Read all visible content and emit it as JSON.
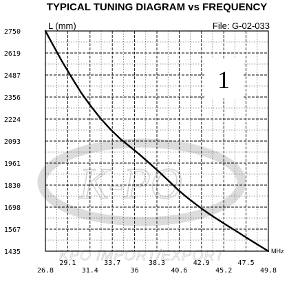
{
  "chart_data": {
    "type": "line",
    "title": "TYPICAL TUNING DIAGRAM vs FREQUENCY",
    "ylabel": "L (mm)",
    "xlabel": "MHz",
    "file_label": "File:  G-02-033",
    "badge": "1",
    "watermark": {
      "logo": "K-PO",
      "text": "KPO IMPORT/EXPORT"
    },
    "x_ticks": [
      "26.8",
      "29.1",
      "31.4",
      "33.7",
      "36",
      "38.3",
      "40.6",
      "42.9",
      "45.2",
      "47.5",
      "49.8"
    ],
    "y_ticks": [
      "2750",
      "2619",
      "2487",
      "2356",
      "2224",
      "2093",
      "1961",
      "1830",
      "1698",
      "1567",
      "1435"
    ],
    "xlim": [
      26.8,
      49.8
    ],
    "ylim": [
      1435,
      2750
    ],
    "grid": true,
    "series": [
      {
        "color": "#000000",
        "x": [
          26.8,
          27.5,
          28.5,
          29.5,
          30.5,
          31.5,
          32.5,
          33.5,
          34.5,
          35.5,
          36.5,
          37.5,
          38.5,
          39.5,
          40.5,
          41.5,
          42.5,
          43.5,
          44.5,
          45.5,
          46.5,
          47.5,
          48.5,
          49.8
        ],
        "y": [
          2750,
          2675,
          2570,
          2473,
          2380,
          2300,
          2227,
          2163,
          2107,
          2060,
          2013,
          1962,
          1910,
          1856,
          1800,
          1752,
          1707,
          1665,
          1627,
          1590,
          1554,
          1517,
          1481,
          1435
        ]
      }
    ]
  }
}
